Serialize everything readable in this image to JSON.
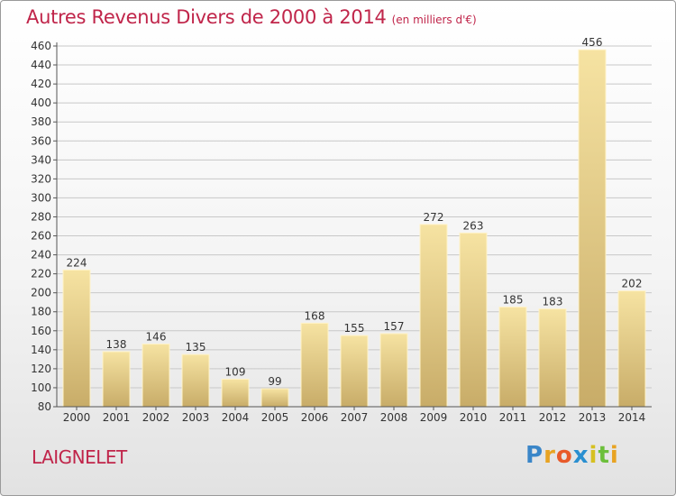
{
  "title": "Autres Revenus Divers de 2000 à 2014",
  "subtitle": "(en milliers d'€)",
  "city": "LAIGNELET",
  "logo": {
    "letters": [
      "P",
      "r",
      "o",
      "x",
      "i",
      "t",
      "i"
    ],
    "colors": [
      "#3a86c8",
      "#e8a322",
      "#e85a2a",
      "#2a8fd0",
      "#d6c021",
      "#6cbf3b",
      "#e8a322"
    ]
  },
  "colors": {
    "title": "#c0254a",
    "bar_light": "#f6e3a2",
    "bar_dark": "#c8ac68",
    "grid": "#c8c8c8",
    "axis": "#555555"
  },
  "chart_data": {
    "type": "bar",
    "categories": [
      "2000",
      "2001",
      "2002",
      "2003",
      "2004",
      "2005",
      "2006",
      "2007",
      "2008",
      "2009",
      "2010",
      "2011",
      "2012",
      "2013",
      "2014"
    ],
    "values": [
      224,
      138,
      146,
      135,
      109,
      99,
      168,
      155,
      157,
      272,
      263,
      185,
      183,
      456,
      202
    ],
    "ylim": [
      80,
      460
    ],
    "yticks": [
      80,
      100,
      120,
      140,
      160,
      180,
      200,
      220,
      240,
      260,
      280,
      300,
      320,
      340,
      360,
      380,
      400,
      420,
      440,
      460
    ],
    "grid": true,
    "legend": "none"
  }
}
